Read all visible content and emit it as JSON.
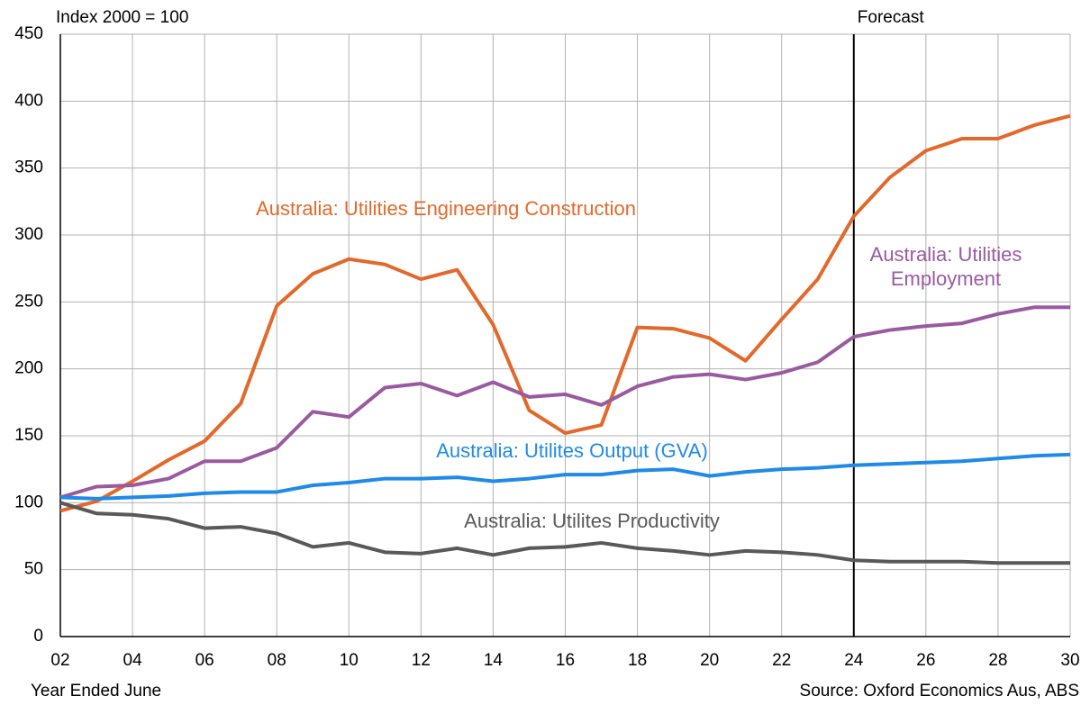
{
  "chart_data": {
    "type": "line",
    "y_axis_label": "Index 2000 = 100",
    "x_axis_label": "Year Ended June",
    "source": "Source: Oxford Economics Aus, ABS",
    "forecast": {
      "label": "Forecast",
      "x": 24
    },
    "x": [
      2,
      3,
      4,
      5,
      6,
      7,
      8,
      9,
      10,
      11,
      12,
      13,
      14,
      15,
      16,
      17,
      18,
      19,
      20,
      21,
      22,
      23,
      24,
      25,
      26,
      27,
      28,
      29,
      30
    ],
    "series": [
      {
        "name": "Australia: Utilities Engineering Construction",
        "color": "#e2692b",
        "values": [
          94,
          101,
          116,
          132,
          146,
          174,
          247,
          271,
          282,
          278,
          267,
          274,
          233,
          169,
          152,
          158,
          231,
          230,
          223,
          206,
          237,
          267,
          314,
          343,
          363,
          372,
          372,
          382,
          389
        ]
      },
      {
        "name": "Australia: Utilities Employment",
        "color": "#9a5aa0",
        "values": [
          104,
          112,
          113,
          118,
          131,
          131,
          141,
          168,
          164,
          186,
          189,
          180,
          190,
          179,
          181,
          173,
          187,
          194,
          196,
          192,
          197,
          205,
          224,
          229,
          232,
          234,
          241,
          246,
          246
        ]
      },
      {
        "name": "Australia: Utilites Output (GVA)",
        "color": "#1f8ae8",
        "values": [
          104,
          103,
          104,
          105,
          107,
          108,
          108,
          113,
          115,
          118,
          118,
          119,
          116,
          118,
          121,
          121,
          124,
          125,
          120,
          123,
          125,
          126,
          128,
          129,
          130,
          131,
          133,
          135,
          136
        ]
      },
      {
        "name": "Australia: Utilites Productivity",
        "color": "#595959",
        "values": [
          100,
          92,
          91,
          88,
          81,
          82,
          77,
          67,
          70,
          63,
          62,
          66,
          61,
          66,
          67,
          70,
          66,
          64,
          61,
          64,
          63,
          61,
          57,
          56,
          56,
          56,
          55,
          55,
          55
        ]
      }
    ],
    "xlim": [
      2,
      30
    ],
    "xticks": [
      {
        "value": 2,
        "label": "02"
      },
      {
        "value": 4,
        "label": "04"
      },
      {
        "value": 6,
        "label": "06"
      },
      {
        "value": 8,
        "label": "08"
      },
      10,
      12,
      14,
      16,
      18,
      20,
      22,
      24,
      26,
      28,
      30
    ],
    "ylim": [
      0,
      450
    ],
    "yticks": [
      0,
      50,
      100,
      150,
      200,
      250,
      300,
      350,
      400,
      450
    ],
    "grid": true
  }
}
